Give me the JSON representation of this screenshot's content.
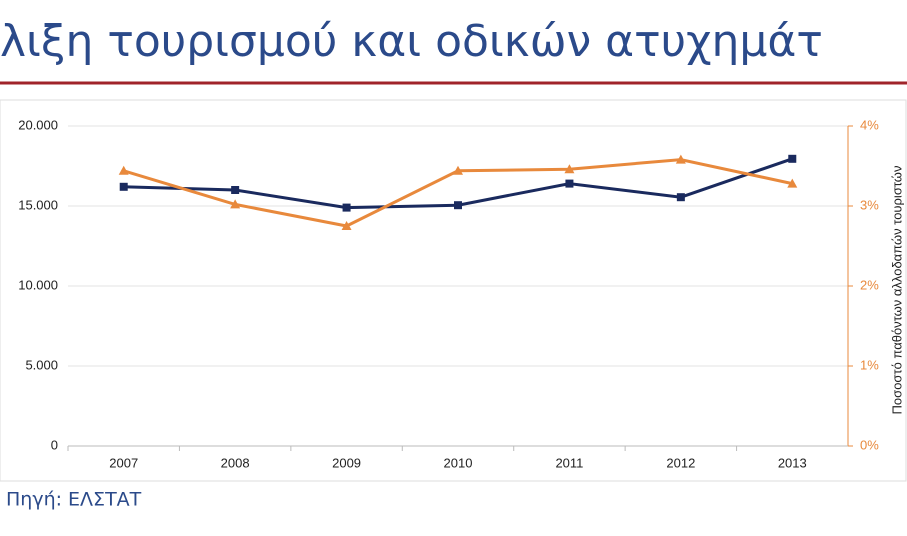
{
  "chart_data": {
    "type": "line",
    "title": "λιξη τουρισμού και οδικών ατυχημάτ",
    "y2_label": "Ποσοστό παθόντων αλλοδαπών τουριστών",
    "source": "Πηγή: ΕΛΣΤΑΤ",
    "categories": [
      "2007",
      "2008",
      "2009",
      "2010",
      "2011",
      "2012",
      "2013"
    ],
    "series": [
      {
        "color": "#1a2a5e",
        "marker": "square",
        "values": [
          16200,
          16000,
          14900,
          15050,
          16400,
          15550,
          17950
        ]
      },
      {
        "color": "#e8893c",
        "marker": "triangle",
        "axis": "y2",
        "values": [
          3.44,
          3.02,
          2.75,
          3.44,
          3.46,
          3.58,
          3.28
        ]
      }
    ],
    "ylim": [
      0,
      20000
    ],
    "yticks": [
      0,
      {
        "value": 5000,
        "label": "5.000"
      },
      {
        "value": 10000,
        "label": "10.000"
      },
      {
        "value": 15000,
        "label": "15.000"
      },
      {
        "value": 20000,
        "label": "20.000"
      }
    ],
    "y2lim": [
      0,
      4
    ],
    "y2ticks": [
      {
        "value": 0,
        "label": "0%"
      },
      {
        "value": 1,
        "label": "1%"
      },
      {
        "value": 2,
        "label": "2%"
      },
      {
        "value": 3,
        "label": "3%"
      },
      {
        "value": 4,
        "label": "4%"
      }
    ],
    "grid": true
  }
}
